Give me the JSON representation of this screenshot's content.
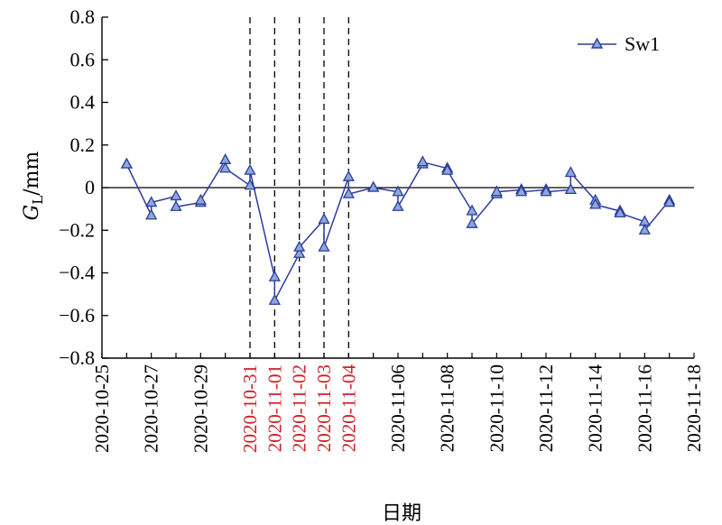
{
  "chart_data": {
    "type": "line",
    "title": "",
    "xlabel": "日期",
    "ylabel": "G_L/mm",
    "ylabel_main": "G",
    "ylabel_sub": "L",
    "ylabel_unit": "/mm",
    "xlim": [
      "2020-10-25",
      "2020-11-18"
    ],
    "ylim": [
      -0.8,
      0.8
    ],
    "yticks": [
      0.8,
      0.6,
      0.4,
      0.2,
      0,
      -0.2,
      -0.4,
      -0.6,
      -0.8
    ],
    "ytick_labels": [
      "0.8",
      "0.6",
      "0.4",
      "0.2",
      "0",
      "−0.2",
      "−0.4",
      "−0.6",
      "−0.8"
    ],
    "xticks": [
      {
        "label": "2020-10-25",
        "date": "2020-10-25",
        "highlight": false
      },
      {
        "label": "2020-10-27",
        "date": "2020-10-27",
        "highlight": false
      },
      {
        "label": "2020-10-29",
        "date": "2020-10-29",
        "highlight": false
      },
      {
        "label": "2020-10-31",
        "date": "2020-10-31",
        "highlight": true
      },
      {
        "label": "2020-11-01",
        "date": "2020-11-01",
        "highlight": true
      },
      {
        "label": "2020-11-02",
        "date": "2020-11-02",
        "highlight": true
      },
      {
        "label": "2020-11-03",
        "date": "2020-11-03",
        "highlight": true
      },
      {
        "label": "2020-11-04",
        "date": "2020-11-04",
        "highlight": true
      },
      {
        "label": "2020-11-06",
        "date": "2020-11-06",
        "highlight": false
      },
      {
        "label": "2020-11-08",
        "date": "2020-11-08",
        "highlight": false
      },
      {
        "label": "2020-11-10",
        "date": "2020-11-10",
        "highlight": false
      },
      {
        "label": "2020-11-12",
        "date": "2020-11-12",
        "highlight": false
      },
      {
        "label": "2020-11-14",
        "date": "2020-11-14",
        "highlight": false
      },
      {
        "label": "2020-11-16",
        "date": "2020-11-16",
        "highlight": false
      },
      {
        "label": "2020-11-18",
        "date": "2020-11-18",
        "highlight": false
      }
    ],
    "vertical_dashed_lines": [
      "2020-10-31",
      "2020-11-01",
      "2020-11-02",
      "2020-11-03",
      "2020-11-04"
    ],
    "legend_position": "top-right",
    "colors": {
      "series": "#2c3c9c",
      "marker_fill": "#8ea8d8",
      "highlight_tick": "#d0202a",
      "axis": "#000000"
    },
    "series": [
      {
        "name": "Sw1",
        "points": [
          {
            "x": "2020-10-26 00:00",
            "y": 0.11
          },
          {
            "x": "2020-10-26 00:00",
            "y": 0.11
          },
          {
            "x": "2020-10-27 00:00",
            "y": -0.13
          },
          {
            "x": "2020-10-27 00:00",
            "y": -0.07
          },
          {
            "x": "2020-10-28 00:00",
            "y": -0.04
          },
          {
            "x": "2020-10-28 00:00",
            "y": -0.09
          },
          {
            "x": "2020-10-29 00:00",
            "y": -0.07
          },
          {
            "x": "2020-10-29 00:00",
            "y": -0.06
          },
          {
            "x": "2020-10-30 00:00",
            "y": 0.13
          },
          {
            "x": "2020-10-30 00:00",
            "y": 0.09
          },
          {
            "x": "2020-10-31 00:00",
            "y": 0.01
          },
          {
            "x": "2020-10-31 00:00",
            "y": 0.08
          },
          {
            "x": "2020-11-01 00:00",
            "y": -0.42
          },
          {
            "x": "2020-11-01 00:00",
            "y": -0.53
          },
          {
            "x": "2020-11-02 00:00",
            "y": -0.31
          },
          {
            "x": "2020-11-02 00:00",
            "y": -0.28
          },
          {
            "x": "2020-11-03 00:00",
            "y": -0.15
          },
          {
            "x": "2020-11-03 00:00",
            "y": -0.28
          },
          {
            "x": "2020-11-04 00:00",
            "y": 0.05
          },
          {
            "x": "2020-11-04 00:00",
            "y": -0.03
          },
          {
            "x": "2020-11-05 00:00",
            "y": 0.0
          },
          {
            "x": "2020-11-05 00:00",
            "y": 0.0
          },
          {
            "x": "2020-11-06 00:00",
            "y": -0.02
          },
          {
            "x": "2020-11-06 00:00",
            "y": -0.09
          },
          {
            "x": "2020-11-07 00:00",
            "y": 0.11
          },
          {
            "x": "2020-11-07 00:00",
            "y": 0.12
          },
          {
            "x": "2020-11-08 00:00",
            "y": 0.09
          },
          {
            "x": "2020-11-08 00:00",
            "y": 0.08
          },
          {
            "x": "2020-11-09 00:00",
            "y": -0.11
          },
          {
            "x": "2020-11-09 00:00",
            "y": -0.17
          },
          {
            "x": "2020-11-10 00:00",
            "y": -0.03
          },
          {
            "x": "2020-11-10 00:00",
            "y": -0.02
          },
          {
            "x": "2020-11-11 00:00",
            "y": -0.01
          },
          {
            "x": "2020-11-11 00:00",
            "y": -0.02
          },
          {
            "x": "2020-11-12 00:00",
            "y": -0.01
          },
          {
            "x": "2020-11-12 00:00",
            "y": -0.02
          },
          {
            "x": "2020-11-13 00:00",
            "y": -0.01
          },
          {
            "x": "2020-11-13 00:00",
            "y": 0.07
          },
          {
            "x": "2020-11-14 00:00",
            "y": -0.06
          },
          {
            "x": "2020-11-14 00:00",
            "y": -0.08
          },
          {
            "x": "2020-11-15 00:00",
            "y": -0.11
          },
          {
            "x": "2020-11-15 00:00",
            "y": -0.12
          },
          {
            "x": "2020-11-16 00:00",
            "y": -0.16
          },
          {
            "x": "2020-11-16 00:00",
            "y": -0.2
          },
          {
            "x": "2020-11-17 00:00",
            "y": -0.06
          },
          {
            "x": "2020-11-17 00:00",
            "y": -0.07
          }
        ]
      }
    ]
  }
}
